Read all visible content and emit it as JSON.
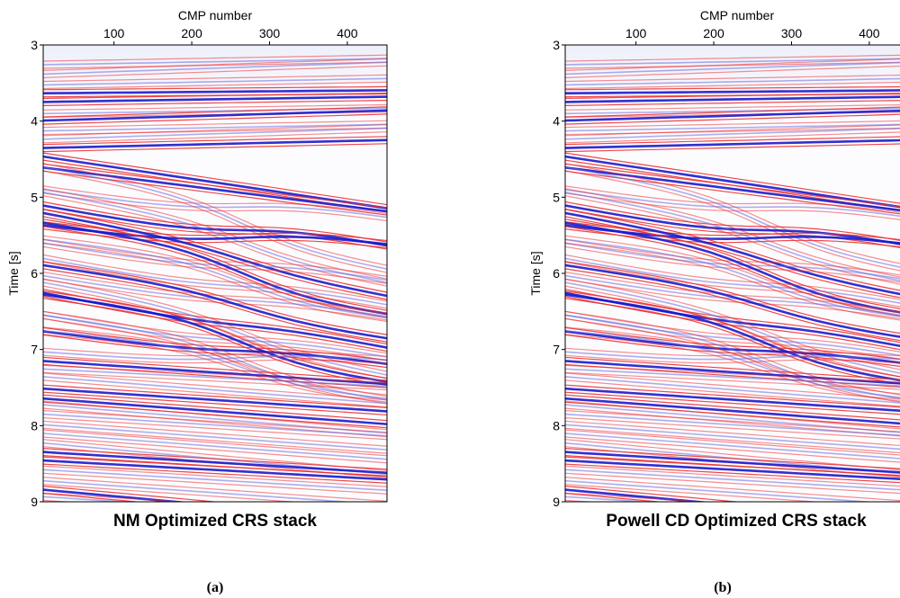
{
  "panels": [
    {
      "label": "(a)",
      "title": "NM Optimized CRS stack",
      "x_label": "CMP number",
      "y_label": "Time [s]",
      "xlim": [
        9,
        451
      ],
      "xticks": [
        100,
        200,
        300,
        400
      ],
      "ylim": [
        3,
        9
      ],
      "yticks": [
        3,
        4,
        5,
        6,
        7,
        8,
        9
      ]
    },
    {
      "label": "(b)",
      "title": "Powell CD Optimized CRS stack",
      "x_label": "CMP number",
      "y_label": "Time [s]",
      "xlim": [
        9,
        451
      ],
      "xticks": [
        100,
        200,
        300,
        400
      ],
      "ylim": [
        3,
        9
      ],
      "yticks": [
        3,
        4,
        5,
        6,
        7,
        8,
        9
      ]
    }
  ]
}
